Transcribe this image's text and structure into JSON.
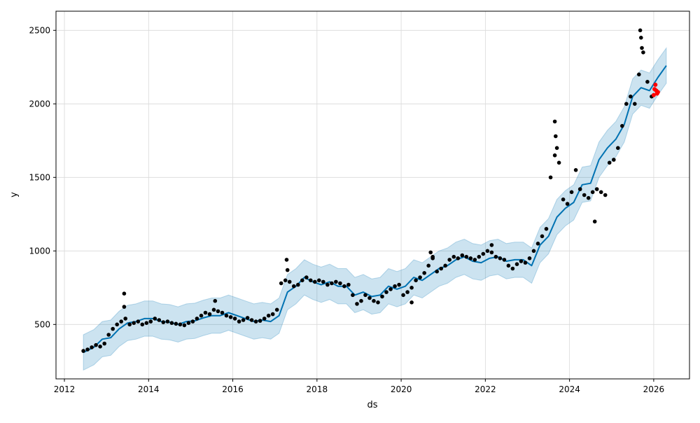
{
  "chart_data": {
    "type": "line",
    "xlabel": "ds",
    "ylabel": "y",
    "xlim": [
      2011.8,
      2026.85
    ],
    "ylim": [
      130,
      2630
    ],
    "grid": true,
    "x_ticks": [
      2012,
      2014,
      2016,
      2018,
      2020,
      2022,
      2024,
      2026
    ],
    "y_ticks": [
      500,
      1000,
      1500,
      2000,
      2500
    ],
    "colors": {
      "forecast_line": "#0072b2",
      "uncertainty_band": "#0072b2",
      "observed_points": "#000000",
      "highlight_points": "#ff0000",
      "grid": "#d9d9d9"
    },
    "series": [
      {
        "type": "line",
        "x": [
          2012.45,
          2012.7,
          2012.9,
          2013.1,
          2013.3,
          2013.5,
          2013.7,
          2013.9,
          2014.1,
          2014.3,
          2014.5,
          2014.7,
          2014.9,
          2015.1,
          2015.3,
          2015.5,
          2015.7,
          2015.9,
          2016.1,
          2016.3,
          2016.5,
          2016.7,
          2016.9,
          2017.1,
          2017.3,
          2017.5,
          2017.7,
          2017.9,
          2018.1,
          2018.3,
          2018.5,
          2018.7,
          2018.9,
          2019.1,
          2019.3,
          2019.5,
          2019.7,
          2019.9,
          2020.1,
          2020.3,
          2020.5,
          2020.7,
          2020.9,
          2021.1,
          2021.3,
          2021.5,
          2021.7,
          2021.9,
          2022.1,
          2022.3,
          2022.5,
          2022.7,
          2022.9,
          2023.1,
          2023.3,
          2023.5,
          2023.7,
          2023.9,
          2024.1,
          2024.3,
          2024.5,
          2024.7,
          2024.9,
          2025.1,
          2025.3,
          2025.5,
          2025.7,
          2025.9,
          2026.1,
          2026.3
        ],
        "values": [
          310,
          345,
          400,
          410,
          470,
          510,
          520,
          540,
          540,
          520,
          515,
          500,
          520,
          525,
          545,
          560,
          560,
          580,
          560,
          540,
          520,
          530,
          520,
          560,
          720,
          760,
          820,
          790,
          770,
          790,
          760,
          760,
          700,
          720,
          690,
          700,
          760,
          740,
          760,
          820,
          800,
          840,
          880,
          900,
          940,
          960,
          930,
          920,
          950,
          960,
          930,
          940,
          940,
          900,
          1040,
          1100,
          1230,
          1290,
          1330,
          1450,
          1460,
          1620,
          1700,
          1760,
          1860,
          2050,
          2110,
          2090,
          2180,
          2260
        ]
      },
      {
        "type": "area",
        "x": [
          2012.45,
          2012.7,
          2012.9,
          2013.1,
          2013.3,
          2013.5,
          2013.7,
          2013.9,
          2014.1,
          2014.3,
          2014.5,
          2014.7,
          2014.9,
          2015.1,
          2015.3,
          2015.5,
          2015.7,
          2015.9,
          2016.1,
          2016.3,
          2016.5,
          2016.7,
          2016.9,
          2017.1,
          2017.3,
          2017.5,
          2017.7,
          2017.9,
          2018.1,
          2018.3,
          2018.5,
          2018.7,
          2018.9,
          2019.1,
          2019.3,
          2019.5,
          2019.7,
          2019.9,
          2020.1,
          2020.3,
          2020.5,
          2020.7,
          2020.9,
          2021.1,
          2021.3,
          2021.5,
          2021.7,
          2021.9,
          2022.1,
          2022.3,
          2022.5,
          2022.7,
          2022.9,
          2023.1,
          2023.3,
          2023.5,
          2023.7,
          2023.9,
          2024.1,
          2024.3,
          2024.5,
          2024.7,
          2024.9,
          2025.1,
          2025.3,
          2025.5,
          2025.7,
          2025.9,
          2026.1,
          2026.3
        ],
        "lower": [
          190,
          225,
          280,
          290,
          350,
          390,
          400,
          420,
          420,
          400,
          395,
          380,
          400,
          405,
          425,
          440,
          440,
          460,
          440,
          420,
          400,
          410,
          400,
          440,
          600,
          640,
          700,
          670,
          650,
          670,
          640,
          640,
          580,
          600,
          570,
          580,
          640,
          620,
          640,
          700,
          680,
          720,
          760,
          780,
          820,
          840,
          810,
          800,
          830,
          840,
          810,
          820,
          820,
          780,
          920,
          980,
          1110,
          1170,
          1210,
          1330,
          1340,
          1500,
          1580,
          1640,
          1740,
          1930,
          1990,
          1970,
          2060,
          2140
        ],
        "upper": [
          430,
          465,
          520,
          530,
          590,
          630,
          640,
          660,
          660,
          640,
          635,
          620,
          640,
          645,
          665,
          680,
          680,
          700,
          680,
          660,
          640,
          650,
          640,
          680,
          840,
          880,
          940,
          910,
          890,
          910,
          880,
          880,
          820,
          840,
          810,
          820,
          880,
          860,
          880,
          940,
          920,
          960,
          1000,
          1020,
          1060,
          1080,
          1050,
          1040,
          1070,
          1080,
          1050,
          1060,
          1060,
          1020,
          1160,
          1220,
          1350,
          1410,
          1450,
          1570,
          1580,
          1740,
          1820,
          1880,
          1980,
          2170,
          2230,
          2210,
          2300,
          2380
        ]
      },
      {
        "type": "scatter",
        "x": [
          2012.45,
          2012.55,
          2012.65,
          2012.75,
          2012.85,
          2012.95,
          2013.05,
          2013.15,
          2013.25,
          2013.35,
          2013.45,
          2013.55,
          2013.65,
          2013.75,
          2013.85,
          2013.95,
          2014.05,
          2014.15,
          2014.25,
          2014.35,
          2014.45,
          2014.55,
          2014.65,
          2014.75,
          2014.85,
          2014.95,
          2015.05,
          2015.15,
          2015.25,
          2015.35,
          2015.45,
          2015.55,
          2015.65,
          2015.75,
          2015.85,
          2015.95,
          2016.05,
          2016.15,
          2016.25,
          2016.35,
          2016.45,
          2016.55,
          2016.65,
          2016.75,
          2016.85,
          2016.95,
          2017.05,
          2017.15,
          2017.25,
          2017.35,
          2017.45,
          2017.55,
          2017.65,
          2017.75,
          2017.85,
          2017.95,
          2018.05,
          2018.15,
          2018.25,
          2018.35,
          2018.45,
          2018.55,
          2018.65,
          2018.75,
          2018.85,
          2018.95,
          2019.05,
          2019.15,
          2019.25,
          2019.35,
          2019.45,
          2019.55,
          2019.65,
          2019.75,
          2019.85,
          2019.95,
          2020.05,
          2020.15,
          2020.25,
          2020.35,
          2020.45,
          2020.55,
          2020.65,
          2020.75,
          2020.85,
          2020.95,
          2021.05,
          2021.15,
          2021.25,
          2021.35,
          2021.45,
          2021.55,
          2021.65,
          2021.75,
          2021.85,
          2021.95,
          2022.05,
          2022.15,
          2022.25,
          2022.35,
          2022.45,
          2022.55,
          2022.65,
          2022.75,
          2022.85,
          2022.95,
          2023.05,
          2023.15,
          2023.25,
          2023.35,
          2023.45,
          2023.55,
          2023.65,
          2023.75,
          2023.85,
          2023.95,
          2024.05,
          2024.15,
          2024.25,
          2024.35,
          2024.45,
          2024.55,
          2024.65,
          2024.75,
          2024.85,
          2024.95,
          2025.05,
          2025.15,
          2025.25,
          2025.35,
          2025.45,
          2025.55,
          2025.65,
          2025.75,
          2025.85,
          2025.95,
          2013.42,
          2013.42,
          2015.58,
          2017.28,
          2017.3,
          2020.7,
          2020.75,
          2023.65,
          2023.67,
          2023.7,
          2025.68,
          2025.7,
          2025.72,
          2024.6,
          2022.15,
          2020.25
        ],
        "values": [
          320,
          330,
          345,
          360,
          350,
          370,
          430,
          470,
          500,
          520,
          540,
          500,
          510,
          520,
          500,
          510,
          520,
          540,
          530,
          515,
          520,
          510,
          505,
          500,
          495,
          510,
          520,
          540,
          560,
          580,
          570,
          600,
          590,
          580,
          560,
          550,
          540,
          520,
          530,
          545,
          530,
          520,
          525,
          540,
          560,
          570,
          600,
          780,
          800,
          790,
          760,
          770,
          800,
          820,
          800,
          790,
          800,
          790,
          770,
          780,
          790,
          780,
          760,
          770,
          700,
          640,
          660,
          700,
          680,
          660,
          650,
          690,
          720,
          740,
          760,
          770,
          700,
          720,
          750,
          800,
          820,
          850,
          900,
          950,
          860,
          880,
          900,
          940,
          960,
          950,
          970,
          960,
          950,
          940,
          960,
          980,
          1000,
          990,
          960,
          950,
          940,
          900,
          880,
          910,
          930,
          920,
          950,
          1000,
          1050,
          1100,
          1150,
          1500,
          1650,
          1600,
          1350,
          1320,
          1400,
          1550,
          1420,
          1380,
          1360,
          1400,
          1420,
          1400,
          1380,
          1600,
          1620,
          1700,
          1850,
          2000,
          2050,
          2000,
          2200,
          2350,
          2150,
          2050,
          710,
          620,
          660,
          940,
          870,
          990,
          960,
          1880,
          1780,
          1700,
          2500,
          2450,
          2380,
          1200,
          1040,
          650
        ]
      },
      {
        "type": "scatter",
        "x": [
          2026.0,
          2026.02,
          2026.04,
          2026.06,
          2026.08,
          2026.1
        ],
        "values": [
          2060,
          2100,
          2130,
          2090,
          2070,
          2080
        ]
      }
    ]
  }
}
